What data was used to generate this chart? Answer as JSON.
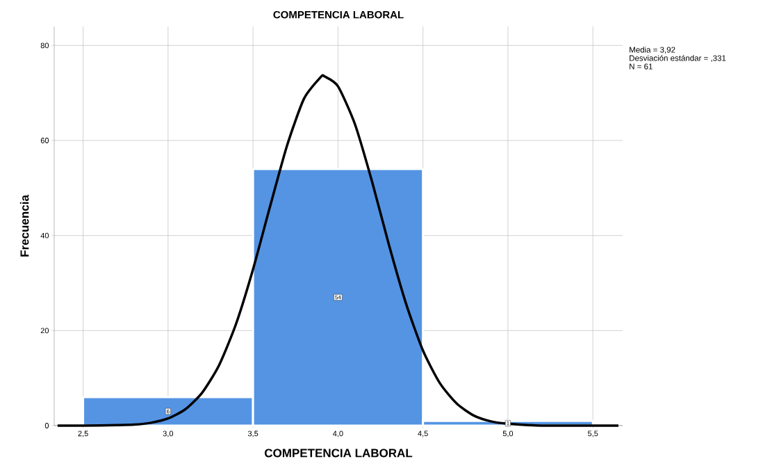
{
  "chart_data": {
    "type": "histogram",
    "title": "COMPETENCIA LABORAL",
    "xlabel": "COMPETENCIA LABORAL",
    "ylabel": "Frecuencia",
    "bins": [
      2.5,
      3.5,
      4.5,
      5.5
    ],
    "values": [
      6,
      54,
      1
    ],
    "color": "#5494e3",
    "value_labels": [
      "6",
      "54",
      "1"
    ],
    "series": [
      {
        "type": "line",
        "color": "#000000",
        "x": [
          2.35,
          2.5,
          2.7,
          2.8,
          2.9,
          3.0,
          3.1,
          3.2,
          3.3,
          3.4,
          3.5,
          3.6,
          3.7,
          3.8,
          3.9,
          3.92,
          4.0,
          4.1,
          4.2,
          4.3,
          4.4,
          4.5,
          4.6,
          4.7,
          4.8,
          4.9,
          5.0,
          5.2,
          5.4,
          5.65
        ],
        "values": [
          0,
          0,
          0.1,
          0.2,
          0.6,
          1.5,
          3.4,
          6.9,
          12.7,
          21.4,
          32.9,
          46.1,
          58.9,
          68.8,
          73.4,
          73.5,
          71.4,
          63.4,
          51.4,
          38.0,
          25.7,
          15.8,
          8.9,
          4.6,
          2.1,
          0.9,
          0.4,
          0,
          0,
          0
        ]
      }
    ],
    "xlim": [
      2.33,
      5.675
    ],
    "ylim": [
      0,
      84
    ],
    "xticks": [
      {
        "value": 2.5,
        "label": "2,5"
      },
      {
        "value": 3.0,
        "label": "3,0"
      },
      {
        "value": 3.5,
        "label": "3,5"
      },
      {
        "value": 4.0,
        "label": "4,0"
      },
      {
        "value": 4.5,
        "label": "4,5"
      },
      {
        "value": 5.0,
        "label": "5,0"
      },
      {
        "value": 5.5,
        "label": "5,5"
      }
    ],
    "yticks": [
      0,
      20,
      40,
      60,
      80
    ],
    "grid": true,
    "annotations": [
      "Media = 3,92",
      "Desviación estándar = ,331",
      "N = 61"
    ]
  }
}
